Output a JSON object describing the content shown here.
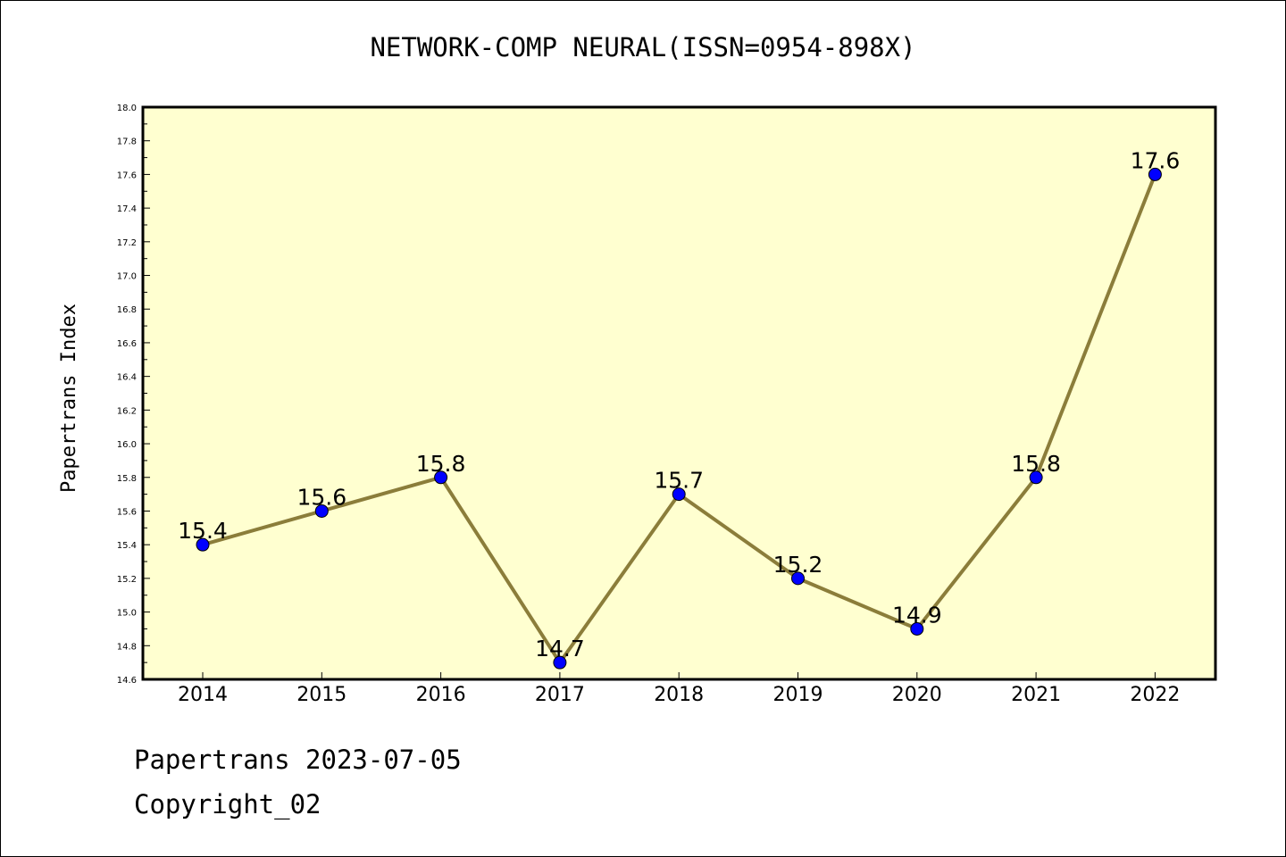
{
  "chart_data": {
    "type": "line",
    "title": "NETWORK-COMP NEURAL(ISSN=0954-898X)",
    "xlabel": "",
    "ylabel": "Papertrans Index",
    "x": [
      "2014",
      "2015",
      "2016",
      "2017",
      "2018",
      "2019",
      "2020",
      "2021",
      "2022"
    ],
    "series": [
      {
        "values": [
          15.4,
          15.6,
          15.8,
          14.7,
          15.7,
          15.2,
          14.9,
          15.8,
          17.6
        ],
        "labels": [
          "15.4",
          "15.6",
          "15.8",
          "14.7",
          "15.7",
          "15.2",
          "14.9",
          "15.8",
          "17.6"
        ]
      }
    ],
    "ylim": [
      14.6,
      18.0
    ],
    "yticks": [
      "14.6",
      "14.8",
      "15.0",
      "15.2",
      "15.4",
      "15.6",
      "15.8",
      "16.0",
      "16.2",
      "16.4",
      "16.6",
      "16.8",
      "17.0",
      "17.2",
      "17.4",
      "17.6",
      "17.8",
      "18.0"
    ],
    "grid": false,
    "colors": {
      "plot_background": "#ffffd0",
      "line": "#8b7d3a",
      "marker": "#0000ff"
    }
  },
  "footer": {
    "line1": "Papertrans 2023-07-05",
    "line2": "Copyright_02"
  }
}
